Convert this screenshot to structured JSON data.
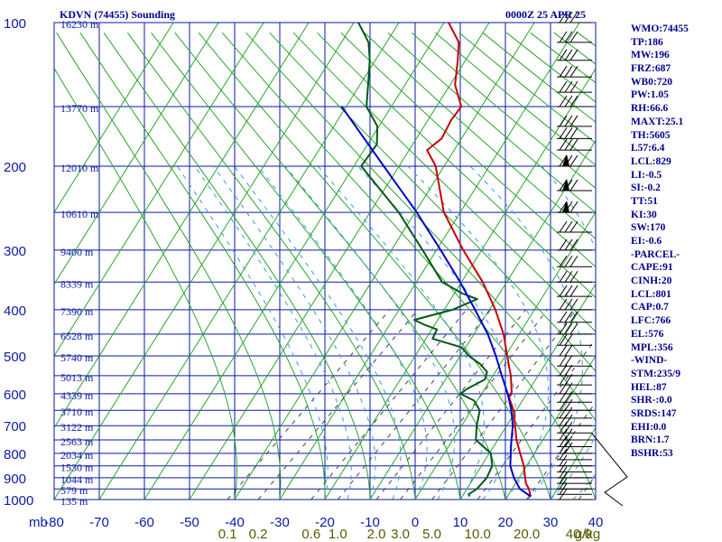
{
  "header": {
    "title": "KDVN (74455) Sounding",
    "timestamp": "0000Z 25 APR 25"
  },
  "indices": [
    "WMO:74455",
    "TP:186",
    "MW:196",
    "FRZ:687",
    "WB0:720",
    "PW:1.05",
    "RH:66.6",
    "MAXT:25.1",
    "TH:5605",
    "L57:6.4",
    "LCL:829",
    "LI:-0.5",
    "SI:-0.2",
    "TT:51",
    "KI:30",
    "SW:170",
    "EI:-0.6",
    "-PARCEL-",
    "CAPE:91",
    "CINH:20",
    "LCL:801",
    "CAP:0.7",
    "LFC:766",
    "EL:576",
    "MPL:356",
    "-WIND-",
    "STM:235/9",
    "HEL:87",
    "SHR-:0.0",
    "SRDS:147",
    "EHI:0.0",
    "BRN:1.7",
    "BSHR:53"
  ],
  "chart_data": {
    "type": "skew-t log-p",
    "title": "KDVN (74455) Sounding",
    "y_unit_label": "mb",
    "pressure_range": [
      1000,
      100
    ],
    "temperature_range": [
      -80,
      40
    ],
    "pressure_ticks": [
      {
        "p": 100,
        "label": "100"
      },
      {
        "p": 200,
        "label": "200"
      },
      {
        "p": 300,
        "label": "300"
      },
      {
        "p": 400,
        "label": "400"
      },
      {
        "p": 500,
        "label": "500"
      },
      {
        "p": 600,
        "label": "600"
      },
      {
        "p": 700,
        "label": "700"
      },
      {
        "p": 800,
        "label": "800"
      },
      {
        "p": 900,
        "label": "900"
      },
      {
        "p": 1000,
        "label": "1000"
      }
    ],
    "pressure_grid": [
      100,
      150,
      200,
      250,
      300,
      350,
      400,
      450,
      500,
      550,
      600,
      650,
      700,
      750,
      800,
      850,
      900,
      950,
      1000
    ],
    "temperature_ticks": [
      "-80",
      "-70",
      "-60",
      "-50",
      "-40",
      "-30",
      "-20",
      "-10",
      "0",
      "10",
      "20",
      "30",
      "40"
    ],
    "temperature_values": [
      -80,
      -70,
      -60,
      -50,
      -40,
      -30,
      -20,
      -10,
      0,
      10,
      20,
      30,
      40
    ],
    "height_labels": [
      {
        "p": 100,
        "label": "16230 m"
      },
      {
        "p": 150,
        "label": "13770 m"
      },
      {
        "p": 200,
        "label": "12010 m"
      },
      {
        "p": 250,
        "label": "10610 m"
      },
      {
        "p": 300,
        "label": "9400 m"
      },
      {
        "p": 350,
        "label": "8339 m"
      },
      {
        "p": 400,
        "label": "7390 m"
      },
      {
        "p": 450,
        "label": "6528 m"
      },
      {
        "p": 500,
        "label": "5740 m"
      },
      {
        "p": 550,
        "label": "5013 m"
      },
      {
        "p": 600,
        "label": "4339 m"
      },
      {
        "p": 650,
        "label": "3710 m"
      },
      {
        "p": 700,
        "label": "3122 m"
      },
      {
        "p": 750,
        "label": "2563 m"
      },
      {
        "p": 800,
        "label": "2034 m"
      },
      {
        "p": 850,
        "label": "1530 m"
      },
      {
        "p": 900,
        "label": "1044 m"
      },
      {
        "p": 950,
        "label": "579 m"
      },
      {
        "p": 1000,
        "label": "135 m"
      }
    ],
    "mixing_ratio_labels": [
      "0.1",
      "0.2",
      "0.6",
      "1.0",
      "2.0",
      "3.0",
      "5.0",
      "10.0",
      "20.0",
      "40.0"
    ],
    "mixing_ratio_values": [
      0.1,
      0.2,
      0.6,
      1.0,
      2.0,
      3.0,
      5.0,
      10.0,
      20.0,
      40.0
    ],
    "mixing_ratio_unit": "g/kg",
    "series": [
      {
        "role": "temperature",
        "color": "#c80000",
        "points": [
          [
            985,
            24.5
          ],
          [
            950,
            21.5
          ],
          [
            925,
            19
          ],
          [
            900,
            17
          ],
          [
            850,
            13
          ],
          [
            800,
            8.5
          ],
          [
            750,
            4
          ],
          [
            700,
            0
          ],
          [
            650,
            -4
          ],
          [
            610,
            -8
          ],
          [
            595,
            -8.5
          ],
          [
            550,
            -12
          ],
          [
            500,
            -16.5
          ],
          [
            450,
            -21
          ],
          [
            400,
            -26.5
          ],
          [
            350,
            -33
          ],
          [
            300,
            -41
          ],
          [
            250,
            -49
          ],
          [
            200,
            -54.5
          ],
          [
            185,
            -57.5
          ],
          [
            175,
            -55
          ],
          [
            160,
            -54
          ],
          [
            150,
            -52.5
          ],
          [
            135,
            -55
          ],
          [
            120,
            -55.5
          ],
          [
            110,
            -56
          ],
          [
            100,
            -59
          ]
        ]
      },
      {
        "role": "dewpoint",
        "color": "#005a14",
        "points": [
          [
            985,
            11
          ],
          [
            975,
            10
          ],
          [
            950,
            10
          ],
          [
            900,
            8.5
          ],
          [
            850,
            6
          ],
          [
            800,
            2
          ],
          [
            750,
            -5
          ],
          [
            700,
            -8.5
          ],
          [
            650,
            -11.5
          ],
          [
            620,
            -15
          ],
          [
            600,
            -19.5
          ],
          [
            585,
            -19
          ],
          [
            560,
            -17
          ],
          [
            540,
            -18
          ],
          [
            520,
            -21
          ],
          [
            500,
            -25
          ],
          [
            480,
            -28
          ],
          [
            460,
            -36
          ],
          [
            440,
            -36.5
          ],
          [
            430,
            -40
          ],
          [
            420,
            -43
          ],
          [
            400,
            -36
          ],
          [
            380,
            -32
          ],
          [
            370,
            -36
          ],
          [
            350,
            -42
          ],
          [
            300,
            -50
          ],
          [
            250,
            -59
          ],
          [
            200,
            -71
          ],
          [
            180,
            -69
          ],
          [
            165,
            -70
          ],
          [
            150,
            -73.5
          ],
          [
            130,
            -74.5
          ],
          [
            120,
            -75
          ],
          [
            110,
            -76
          ],
          [
            100,
            -79
          ]
        ]
      },
      {
        "role": "parcel",
        "color": "#0000c8",
        "points": [
          [
            985,
            24.5
          ],
          [
            950,
            19.5
          ],
          [
            900,
            14.5
          ],
          [
            850,
            10
          ],
          [
            801,
            6.5
          ],
          [
            766,
            4
          ],
          [
            700,
            -0.5
          ],
          [
            650,
            -4.5
          ],
          [
            600,
            -9
          ],
          [
            550,
            -14
          ],
          [
            500,
            -19
          ],
          [
            450,
            -24.5
          ],
          [
            400,
            -31
          ],
          [
            350,
            -38
          ],
          [
            300,
            -46
          ],
          [
            250,
            -55
          ],
          [
            200,
            -66
          ],
          [
            150,
            -79
          ]
        ]
      }
    ],
    "wind_barbs_mb": [
      1000,
      975,
      950,
      925,
      900,
      875,
      850,
      825,
      800,
      775,
      750,
      725,
      700,
      675,
      650,
      625,
      600,
      575,
      550,
      525,
      500,
      475,
      450,
      425,
      400,
      375,
      350,
      325,
      300,
      275,
      250,
      225,
      200,
      185,
      175,
      165,
      150,
      140,
      130,
      120,
      110,
      100
    ]
  }
}
